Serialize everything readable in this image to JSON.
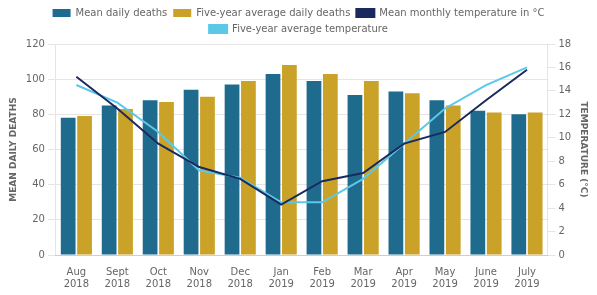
{
  "chart_data": {
    "type": "bar",
    "categories": [
      "Aug 2018",
      "Sept 2018",
      "Oct 2018",
      "Nov 2018",
      "Dec 2018",
      "Jan 2019",
      "Feb 2019",
      "Mar 2019",
      "Apr 2019",
      "May 2019",
      "June 2019",
      "July 2019"
    ],
    "series": [
      {
        "name": "Mean daily deaths",
        "color": "#1f6b8e",
        "values": [
          78,
          85,
          88,
          94,
          97,
          103,
          99,
          91,
          93,
          88,
          82,
          80
        ]
      },
      {
        "name": "Five-year average daily deaths",
        "color": "#c9a227",
        "values": [
          79,
          83,
          87,
          90,
          99,
          108,
          103,
          99,
          92,
          85,
          81,
          81
        ]
      },
      {
        "name": "Mean monthly temperature in °C",
        "type": "line",
        "marker": "none",
        "axis": "y2",
        "color": "#1a2a5e",
        "values": [
          15.2,
          12.5,
          9.5,
          7.5,
          6.5,
          4.3,
          6.3,
          7.0,
          9.5,
          10.5,
          13.2,
          15.8
        ]
      },
      {
        "name": "Five-year average temperature",
        "type": "line",
        "marker": "none",
        "axis": "y2",
        "color": "#5bc8e8",
        "values": [
          14.5,
          13.0,
          10.5,
          7.2,
          6.6,
          4.5,
          4.5,
          6.5,
          9.5,
          12.5,
          14.5,
          16.0
        ]
      }
    ],
    "ylabel": "MEAN DAILY DEATHS",
    "y2label": "TEMPERATURE (°C)",
    "ylim": [
      0,
      120
    ],
    "yticks": [
      0,
      20,
      40,
      60,
      80,
      100,
      120
    ],
    "y2lim": [
      0,
      18
    ],
    "y2ticks": [
      0,
      2,
      4,
      6,
      8,
      10,
      12,
      14,
      16,
      18
    ],
    "grid": true,
    "legend": "top"
  }
}
